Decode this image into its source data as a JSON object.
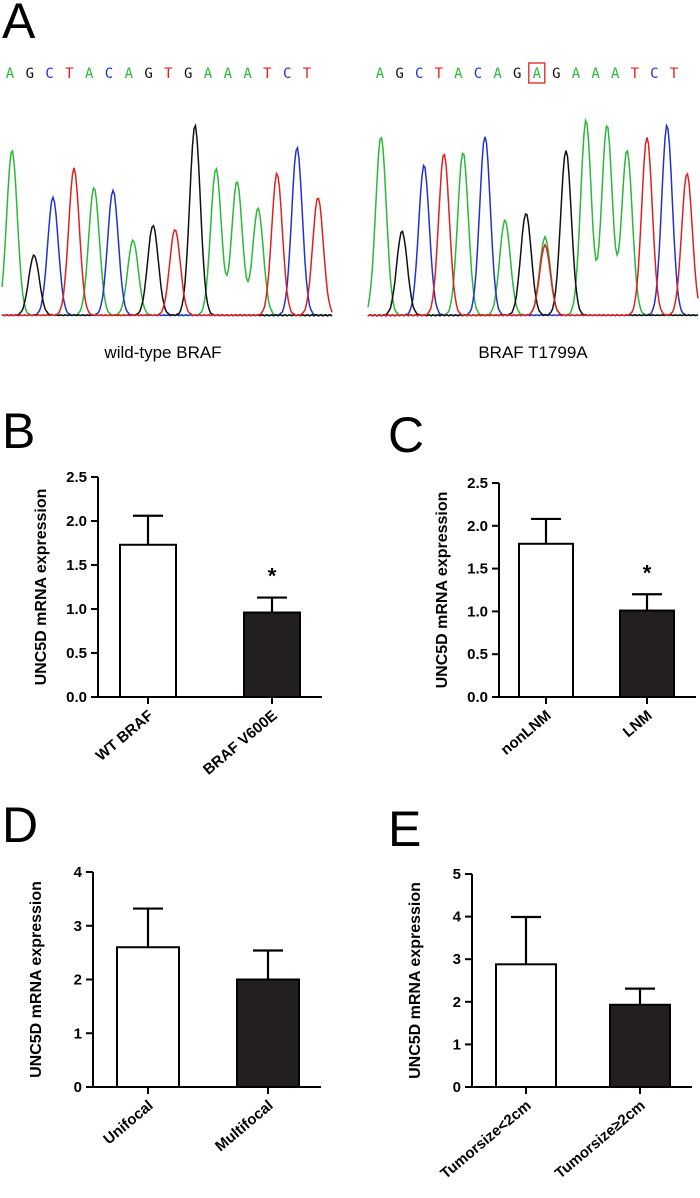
{
  "panel_a": {
    "letter": "A",
    "colors": {
      "A": "#2ab83a",
      "C": "#2233cc",
      "G": "#111111",
      "T": "#e02020",
      "box": "#e02020"
    },
    "left": {
      "sequence": [
        "A",
        "G",
        "C",
        "T",
        "A",
        "C",
        "A",
        "G",
        "T",
        "G",
        "A",
        "A",
        "A",
        "T",
        "C",
        "T"
      ],
      "caption": "wild-type BRAF"
    },
    "right": {
      "sequence": [
        "A",
        "G",
        "C",
        "T",
        "A",
        "C",
        "A",
        "G",
        "A",
        "G",
        "A",
        "A",
        "A",
        "T",
        "C",
        "T"
      ],
      "caption": "BRAF T1799A",
      "highlight_index": 8
    }
  },
  "chart_data": [
    {
      "panel": "B",
      "type": "bar",
      "title": "",
      "ylabel": "UNC5D mRNA expression",
      "ylim": [
        0,
        2.5
      ],
      "yticks": [
        "0.0",
        "0.5",
        "1.0",
        "1.5",
        "2.0",
        "2.5"
      ],
      "categories": [
        "WT BRAF",
        "BRAF V600E"
      ],
      "values": [
        1.73,
        0.96
      ],
      "errors": [
        0.33,
        0.17
      ],
      "fills": [
        "#ffffff",
        "#231f20"
      ],
      "significance": [
        "",
        "*"
      ]
    },
    {
      "panel": "C",
      "type": "bar",
      "title": "",
      "ylabel": "UNC5D mRNA expression",
      "ylim": [
        0,
        2.5
      ],
      "yticks": [
        "0.0",
        "0.5",
        "1.0",
        "1.5",
        "2.0",
        "2.5"
      ],
      "categories": [
        "nonLNM",
        "LNM"
      ],
      "values": [
        1.79,
        1.01
      ],
      "errors": [
        0.29,
        0.19
      ],
      "fills": [
        "#ffffff",
        "#231f20"
      ],
      "significance": [
        "",
        "*"
      ]
    },
    {
      "panel": "D",
      "type": "bar",
      "title": "",
      "ylabel": "UNC5D mRNA expression",
      "ylim": [
        0,
        4
      ],
      "yticks": [
        "0",
        "1",
        "2",
        "3",
        "4"
      ],
      "categories": [
        "Unifocal",
        "Multifocal"
      ],
      "values": [
        2.6,
        2.0
      ],
      "errors": [
        0.72,
        0.54
      ],
      "fills": [
        "#ffffff",
        "#231f20"
      ],
      "significance": [
        "",
        ""
      ]
    },
    {
      "panel": "E",
      "type": "bar",
      "title": "",
      "ylabel": "UNC5D mRNA expression",
      "ylim": [
        0,
        5
      ],
      "yticks": [
        "0",
        "1",
        "2",
        "3",
        "4",
        "5"
      ],
      "categories": [
        "Tumorsize<2cm",
        "Tumorsize≥2cm"
      ],
      "values": [
        2.88,
        1.93
      ],
      "errors": [
        1.11,
        0.38
      ],
      "fills": [
        "#ffffff",
        "#231f20"
      ],
      "significance": [
        "",
        ""
      ]
    }
  ]
}
